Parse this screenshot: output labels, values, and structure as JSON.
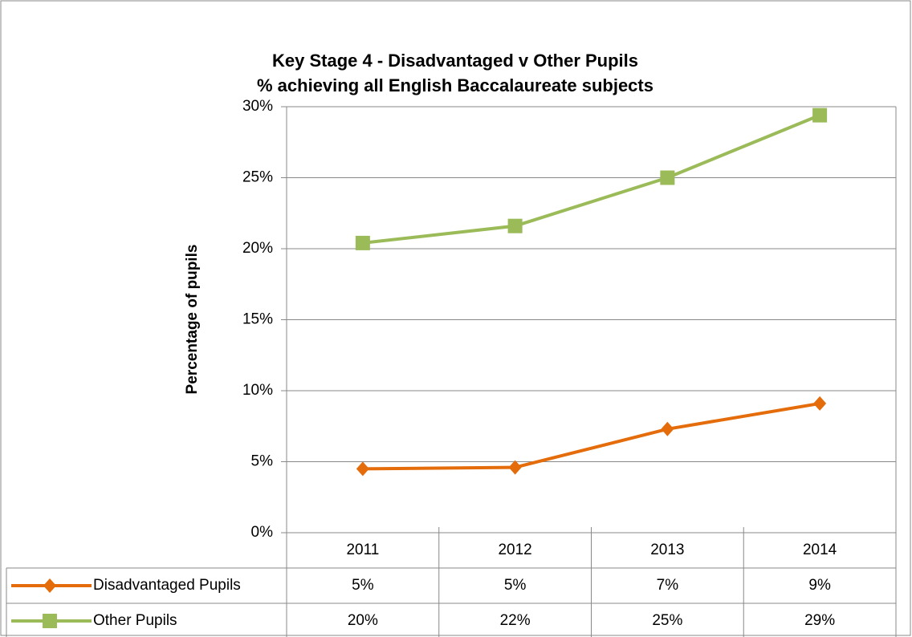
{
  "chart_data": {
    "type": "line",
    "title": "Key Stage 4 - Disadvantaged v Other Pupils",
    "subtitle": "% achieving all English Baccalaureate subjects",
    "y_label": "Percentage of pupils",
    "categories": [
      "2011",
      "2012",
      "2013",
      "2014"
    ],
    "series": [
      {
        "name": "Disadvantaged Pupils",
        "color": "#e46c0a",
        "marker": "diamond",
        "values": [
          4.5,
          4.6,
          7.3,
          9.1
        ],
        "value_labels": [
          "5%",
          "5%",
          "7%",
          "9%"
        ]
      },
      {
        "name": "Other Pupils",
        "color": "#9bbb59",
        "marker": "square",
        "values": [
          20.4,
          21.6,
          25.0,
          29.4
        ],
        "value_labels": [
          "20%",
          "22%",
          "25%",
          "29%"
        ]
      }
    ],
    "ylim": [
      0,
      30
    ],
    "yticks": [
      {
        "value": 0,
        "label": "0%"
      },
      {
        "value": 5,
        "label": "5%"
      },
      {
        "value": 10,
        "label": "10%"
      },
      {
        "value": 15,
        "label": "15%"
      },
      {
        "value": 20,
        "label": "20%"
      },
      {
        "value": 25,
        "label": "25%"
      },
      {
        "value": 30,
        "label": "30%"
      }
    ],
    "grid": true
  }
}
